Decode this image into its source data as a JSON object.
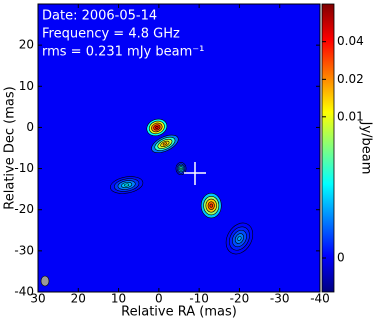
{
  "chart_data": {
    "type": "image",
    "annotations": [
      "Date: 2006-05-14",
      "Frequency = 4.8 GHz",
      "rms = 0.231 mJy beam⁻¹"
    ],
    "xlabel": "Relative RA (mas)",
    "ylabel": "Relative Dec (mas)",
    "xlim": [
      30,
      -40
    ],
    "xticks": [
      30,
      20,
      10,
      0,
      -10,
      -20,
      -30,
      -40
    ],
    "ylim": [
      -40,
      30
    ],
    "yticks": [
      -40,
      -30,
      -20,
      -10,
      0,
      10,
      20
    ],
    "colorbar": {
      "label": "Jy/beam",
      "scale": "asinh",
      "clim": [
        -0.001,
        0.08
      ],
      "ticks": [
        0,
        0.01,
        0.02,
        0.04
      ],
      "colormap": "jet"
    },
    "components": [
      {
        "ra": 0.5,
        "dec": 0,
        "flux": 0.048,
        "major": 5,
        "minor": 4,
        "angle": 70
      },
      {
        "ra": -1.5,
        "dec": -4,
        "flux": 0.018,
        "major": 7,
        "minor": 3.5,
        "angle": 65
      },
      {
        "ra": -5.5,
        "dec": -10,
        "flux": 0.004,
        "major": 3,
        "minor": 2.5,
        "angle": 0
      },
      {
        "ra": 8,
        "dec": -14,
        "flux": 0.0025,
        "major": 8,
        "minor": 4,
        "angle": 80
      },
      {
        "ra": -13,
        "dec": -19,
        "flux": 0.032,
        "major": 6,
        "minor": 5,
        "angle": 0
      },
      {
        "ra": -20,
        "dec": -27,
        "flux": 0.0015,
        "major": 8,
        "minor": 6,
        "angle": 30
      }
    ]
  }
}
